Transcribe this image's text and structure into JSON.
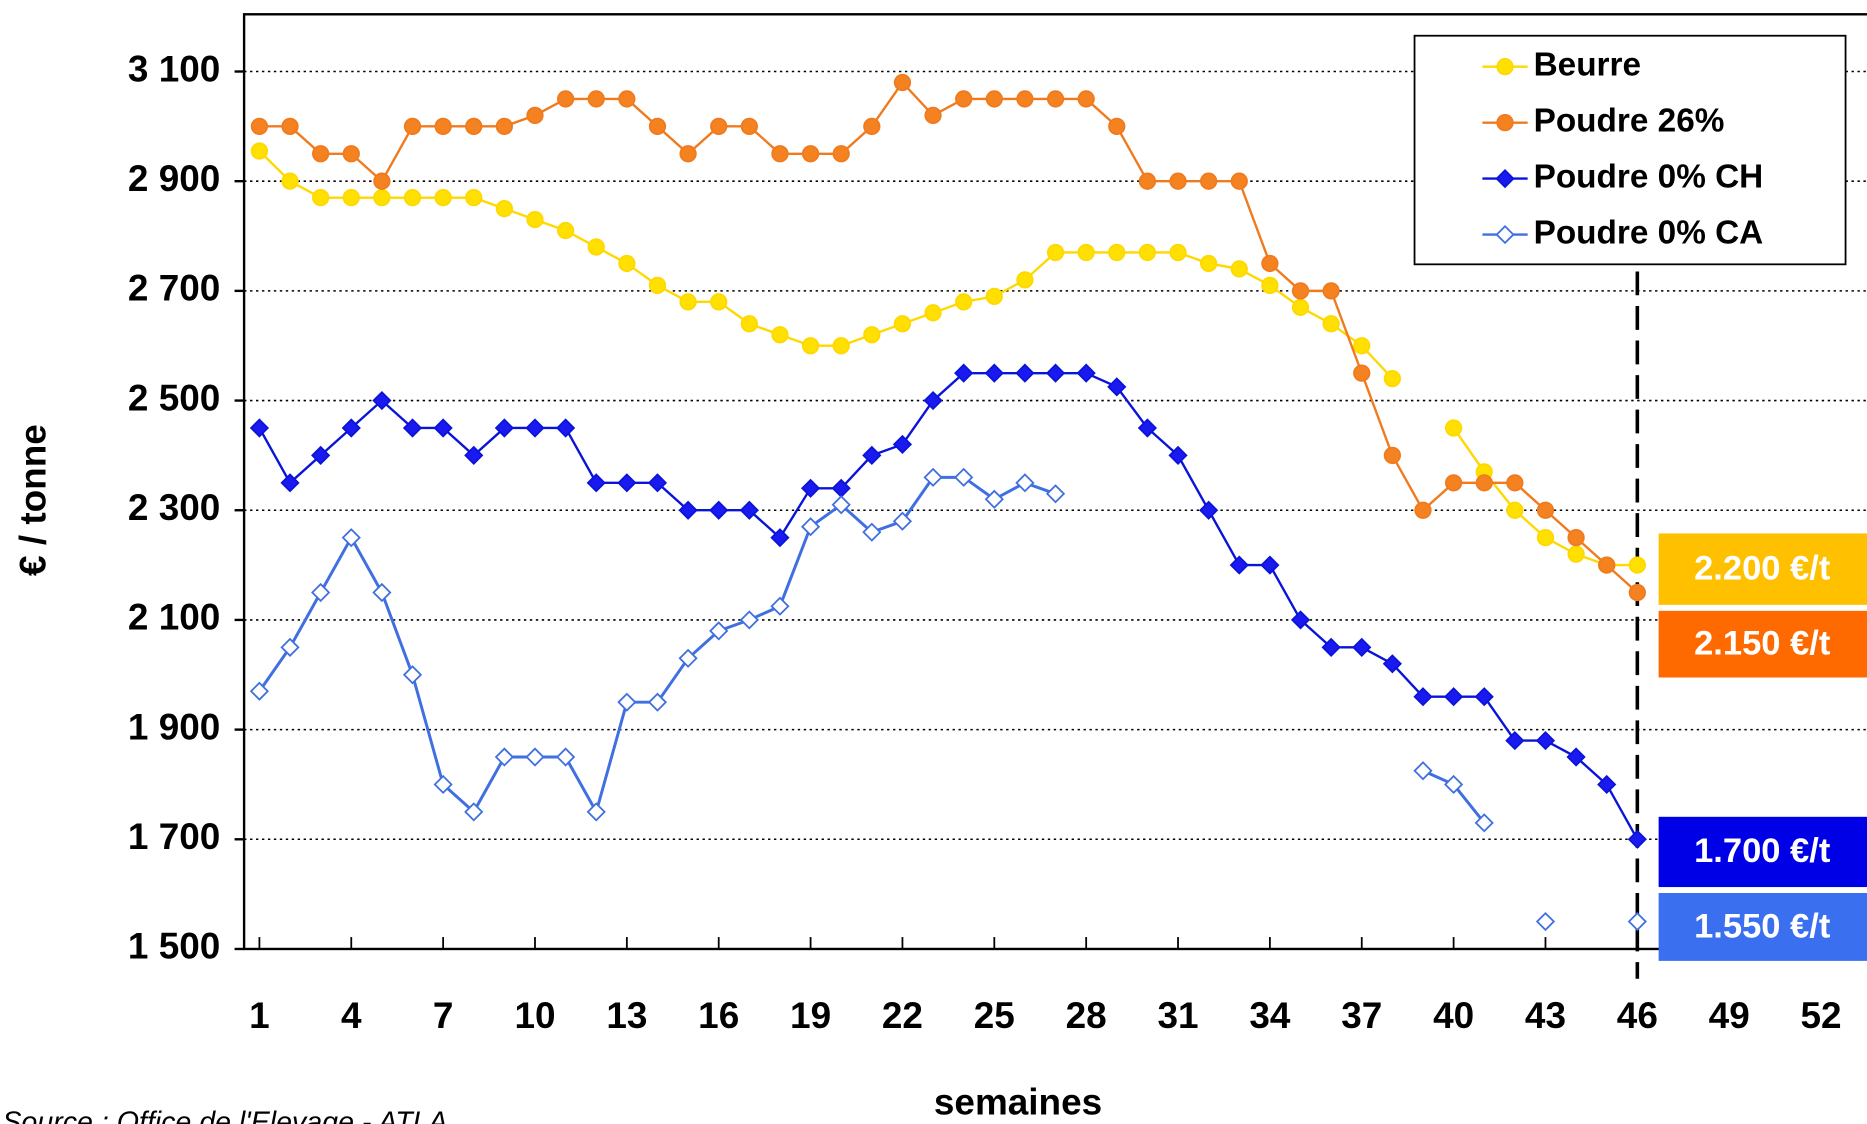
{
  "chart_data": {
    "type": "line",
    "x_label": "semaines",
    "y_label": "€ / tonne",
    "source": "Source : Office de l'Elevage - ATLA",
    "x": [
      1,
      2,
      3,
      4,
      5,
      6,
      7,
      8,
      9,
      10,
      11,
      12,
      13,
      14,
      15,
      16,
      17,
      18,
      19,
      20,
      21,
      22,
      23,
      24,
      25,
      26,
      27,
      28,
      29,
      30,
      31,
      32,
      33,
      34,
      35,
      36,
      37,
      38,
      39,
      40,
      41,
      42,
      43,
      44,
      45,
      46
    ],
    "series": [
      {
        "name": "Beurre",
        "color": "#ffd800",
        "fill": "#ffe000",
        "marker": "circle",
        "values": [
          2955,
          2900,
          2870,
          2870,
          2870,
          2870,
          2870,
          2870,
          2850,
          2830,
          2810,
          2780,
          2750,
          2710,
          2680,
          2680,
          2640,
          2620,
          2600,
          2600,
          2620,
          2640,
          2660,
          2680,
          2690,
          2720,
          2770,
          2770,
          2770,
          2770,
          2770,
          2750,
          2740,
          2710,
          2670,
          2640,
          2600,
          2540,
          null,
          2450,
          2370,
          2300,
          2250,
          2220,
          2200,
          2200
        ]
      },
      {
        "name": "Poudre 26%",
        "color": "#f07a1e",
        "fill": "#f58220",
        "marker": "circle",
        "values": [
          3000,
          3000,
          2950,
          2950,
          2900,
          3000,
          3000,
          3000,
          3000,
          3020,
          3050,
          3050,
          3050,
          3000,
          2950,
          3000,
          3000,
          2950,
          2950,
          2950,
          3000,
          3080,
          3020,
          3050,
          3050,
          3050,
          3050,
          3050,
          3000,
          2900,
          2900,
          2900,
          2900,
          2750,
          2700,
          2700,
          2550,
          2400,
          2300,
          2350,
          2350,
          2350,
          2300,
          2250,
          2200,
          2150
        ]
      },
      {
        "name": "Poudre 0% CH",
        "color": "#0a14d8",
        "fill": "#1a1af0",
        "marker": "diamond",
        "values": [
          2450,
          2350,
          2400,
          2450,
          2500,
          2450,
          2450,
          2400,
          2450,
          2450,
          2450,
          2350,
          2350,
          2350,
          2300,
          2300,
          2300,
          2250,
          2340,
          2340,
          2400,
          2420,
          2500,
          2550,
          2550,
          2550,
          2550,
          2550,
          2525,
          2450,
          2400,
          2300,
          2200,
          2200,
          2100,
          2050,
          2050,
          2020,
          1960,
          1960,
          1960,
          1880,
          1880,
          1850,
          1800,
          1700
        ]
      },
      {
        "name": "Poudre 0% CA",
        "color": "#3f6fe0",
        "fill": "#ffffff",
        "marker": "diamond",
        "values": [
          1970,
          2050,
          2150,
          2250,
          2150,
          2000,
          1800,
          1750,
          1850,
          1850,
          1850,
          1750,
          1950,
          1950,
          2030,
          2080,
          2100,
          2125,
          2270,
          2310,
          2260,
          2280,
          2360,
          2360,
          2320,
          2350,
          2330,
          null,
          null,
          null,
          null,
          null,
          null,
          null,
          null,
          null,
          null,
          null,
          1825,
          1800,
          1730,
          null,
          1550,
          null,
          null,
          1550
        ]
      }
    ],
    "xlim": [
      0.5,
      53.5
    ],
    "xticks": [
      1,
      4,
      7,
      10,
      13,
      16,
      19,
      22,
      25,
      28,
      31,
      34,
      37,
      40,
      43,
      46,
      49,
      52
    ],
    "ylim": [
      1500,
      3200
    ],
    "yticks": [
      {
        "value": 1500,
        "label": "1 500"
      },
      {
        "value": 1700,
        "label": "1 700"
      },
      {
        "value": 1900,
        "label": "1 900"
      },
      {
        "value": 2100,
        "label": "2 100"
      },
      {
        "value": 2300,
        "label": "2 300"
      },
      {
        "value": 2500,
        "label": "2 500"
      },
      {
        "value": 2700,
        "label": "2 700"
      },
      {
        "value": 2900,
        "label": "2 900"
      },
      {
        "value": 3100,
        "label": "3 100"
      }
    ],
    "grid": true,
    "legend": "upper right",
    "vline": 46,
    "end_labels": [
      {
        "value": 2200,
        "label": "2.200 €/t",
        "color": "#ffc000"
      },
      {
        "value": 2150,
        "label": "2.150 €/t",
        "color": "#ff6a00"
      },
      {
        "value": 1700,
        "label": "1.700 €/t",
        "color": "#0000e6"
      },
      {
        "value": 1550,
        "label": "1.550 €/t",
        "color": "#3a6ff0"
      }
    ]
  }
}
